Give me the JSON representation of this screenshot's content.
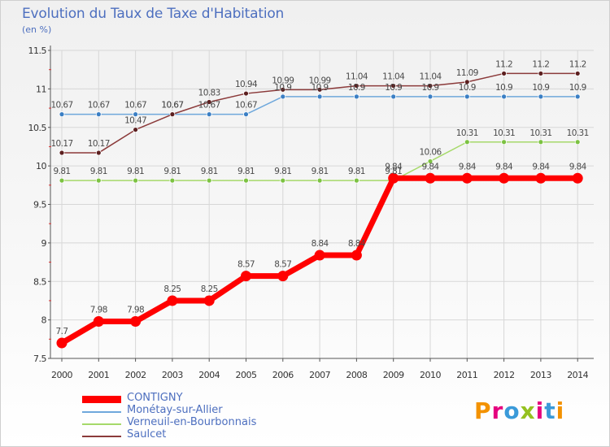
{
  "header": {
    "title": "Evolution du Taux de Taxe d'Habitation",
    "unit": "(en %)"
  },
  "logo": {
    "text": "Proxiti",
    "letter_colors": [
      "#f39200",
      "#e5007e",
      "#3a9ad9",
      "#95c11f",
      "#e5007e",
      "#3a9ad9",
      "#f39200"
    ]
  },
  "colors": {
    "grid": "#d7d7d7",
    "axis_text": "#333333",
    "label_text": "#4a4a4a"
  },
  "chart_data": {
    "type": "line",
    "title": "Evolution du Taux de Taxe d'Habitation",
    "ylabel": "(en %)",
    "xlabel": "",
    "ylim": [
      7.5,
      11.5
    ],
    "yticks": [
      7.5,
      8,
      8.5,
      9,
      9.5,
      10,
      10.5,
      11,
      11.5
    ],
    "ytick_labels": [
      "7.5",
      "8",
      "8.5",
      "9",
      "9.5",
      "10",
      "10.5",
      "11",
      "11.5"
    ],
    "grid": true,
    "legend_position": "bottom-left",
    "x": [
      "2000",
      "2001",
      "2002",
      "2003",
      "2004",
      "2005",
      "2006",
      "2007",
      "2008",
      "2009",
      "2010",
      "2011",
      "2012",
      "2013",
      "2014"
    ],
    "series": [
      {
        "name": "Monétay-sur-Allier",
        "color": "#6fa8dc",
        "point_color": "#3b7fc4",
        "values": [
          10.67,
          10.67,
          10.67,
          10.67,
          10.67,
          10.67,
          10.9,
          10.9,
          10.9,
          10.9,
          10.9,
          10.9,
          10.9,
          10.9,
          10.9
        ],
        "labels": [
          "10.67",
          "10.67",
          "10.67",
          "10.67",
          "10.67",
          "10.67",
          "10.9",
          "10.9",
          "10.9",
          "10.9",
          "10.9",
          "10.9",
          "10.9",
          "10.9",
          "10.9"
        ]
      },
      {
        "name": "Verneuil-en-Bourbonnais",
        "color": "#a6d96a",
        "point_color": "#7cc242",
        "values": [
          9.81,
          9.81,
          9.81,
          9.81,
          9.81,
          9.81,
          9.81,
          9.81,
          9.81,
          9.81,
          10.06,
          10.31,
          10.31,
          10.31,
          10.31
        ],
        "labels": [
          "9.81",
          "9.81",
          "9.81",
          "9.81",
          "9.81",
          "9.81",
          "9.81",
          "9.81",
          "9.81",
          "9.81",
          "10.06",
          "10.31",
          "10.31",
          "10.31",
          "10.31"
        ]
      },
      {
        "name": "Saulcet",
        "color": "#8b3a3a",
        "point_color": "#5c1f1f",
        "values": [
          10.17,
          10.17,
          10.47,
          10.67,
          10.83,
          10.94,
          10.99,
          10.99,
          11.04,
          11.04,
          11.04,
          11.09,
          11.2,
          11.2,
          11.2
        ],
        "labels": [
          "10.17",
          "10.17",
          "10.47",
          "10.67",
          "10.83",
          "10.94",
          "10.99",
          "10.99",
          "11.04",
          "11.04",
          "11.04",
          "11.09",
          "11.2",
          "11.2",
          "11.2"
        ]
      },
      {
        "name": "CONTIGNY",
        "color": "#ff0000",
        "point_color": "#ff0000",
        "values": [
          7.7,
          7.98,
          7.98,
          8.25,
          8.25,
          8.57,
          8.57,
          8.84,
          8.84,
          9.84,
          9.84,
          9.84,
          9.84,
          9.84,
          9.84
        ],
        "labels": [
          "7.7",
          "7.98",
          "7.98",
          "8.25",
          "8.25",
          "8.57",
          "8.57",
          "8.84",
          "8.84",
          "9.84",
          "9.84",
          "9.84",
          "9.84",
          "9.84",
          "9.84"
        ]
      }
    ],
    "legend": [
      "CONTIGNY",
      "Monétay-sur-Allier",
      "Verneuil-en-Bourbonnais",
      "Saulcet"
    ]
  }
}
